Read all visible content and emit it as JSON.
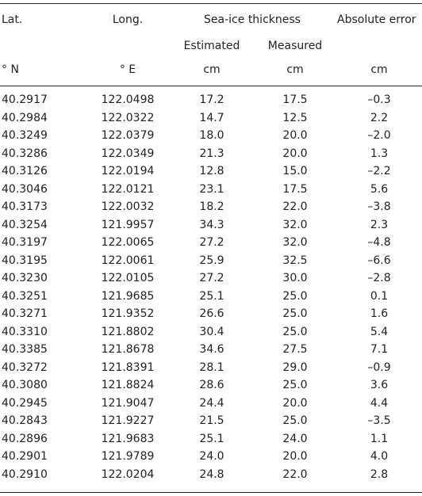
{
  "header": {
    "lat": "Lat.",
    "long": "Long.",
    "thickness": "Sea-ice thickness",
    "estimated": "Estimated",
    "measured": "Measured",
    "error": "Absolute error",
    "lat_unit": "° N",
    "long_unit": "° E",
    "estimated_unit": "cm",
    "measured_unit": "cm",
    "error_unit": "cm"
  },
  "table": {
    "rows": [
      [
        "40.2917",
        "122.0498",
        "17.2",
        "17.5",
        "–0.3"
      ],
      [
        "40.2984",
        "122.0322",
        "14.7",
        "12.5",
        "2.2"
      ],
      [
        "40.3249",
        "122.0379",
        "18.0",
        "20.0",
        "–2.0"
      ],
      [
        "40.3286",
        "122.0349",
        "21.3",
        "20.0",
        "1.3"
      ],
      [
        "40.3126",
        "122.0194",
        "12.8",
        "15.0",
        "–2.2"
      ],
      [
        "40.3046",
        "122.0121",
        "23.1",
        "17.5",
        "5.6"
      ],
      [
        "40.3173",
        "122.0032",
        "18.2",
        "22.0",
        "–3.8"
      ],
      [
        "40.3254",
        "121.9957",
        "34.3",
        "32.0",
        "2.3"
      ],
      [
        "40.3197",
        "122.0065",
        "27.2",
        "32.0",
        "–4.8"
      ],
      [
        "40.3195",
        "122.0061",
        "25.9",
        "32.5",
        "–6.6"
      ],
      [
        "40.3230",
        "122.0105",
        "27.2",
        "30.0",
        "–2.8"
      ],
      [
        "40.3251",
        "121.9685",
        "25.1",
        "25.0",
        "0.1"
      ],
      [
        "40.3271",
        "121.9352",
        "26.6",
        "25.0",
        "1.6"
      ],
      [
        "40.3310",
        "121.8802",
        "30.4",
        "25.0",
        "5.4"
      ],
      [
        "40.3385",
        "121.8678",
        "34.6",
        "27.5",
        "7.1"
      ],
      [
        "40.3272",
        "121.8391",
        "28.1",
        "29.0",
        "–0.9"
      ],
      [
        "40.3080",
        "121.8824",
        "28.6",
        "25.0",
        "3.6"
      ],
      [
        "40.2945",
        "121.9047",
        "24.4",
        "20.0",
        "4.4"
      ],
      [
        "40.2843",
        "121.9227",
        "21.5",
        "25.0",
        "–3.5"
      ],
      [
        "40.2896",
        "121.9683",
        "25.1",
        "24.0",
        "1.1"
      ],
      [
        "40.2901",
        "121.9789",
        "24.0",
        "20.0",
        "4.0"
      ],
      [
        "40.2910",
        "122.0204",
        "24.8",
        "22.0",
        "2.8"
      ]
    ]
  }
}
